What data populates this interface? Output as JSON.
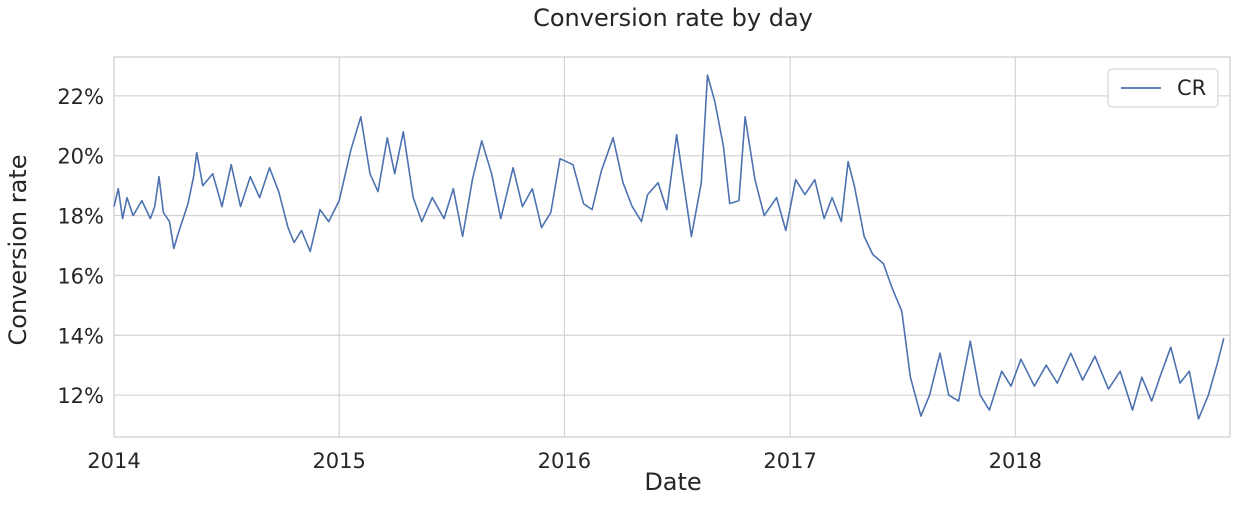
{
  "chart_data": {
    "type": "line",
    "title": "Conversion rate by day",
    "xlabel": "Date",
    "ylabel": "Conversion rate",
    "x_range": [
      "2014-01-01",
      "2018-12-15"
    ],
    "ylim": [
      10.6,
      23.3
    ],
    "x_ticks": [
      "2014",
      "2015",
      "2016",
      "2017",
      "2018"
    ],
    "y_ticks": [
      12,
      14,
      16,
      18,
      20,
      22
    ],
    "y_tick_format": "%",
    "grid": true,
    "legend_position": "top-right",
    "colors": {
      "line": "#4c72b0",
      "grid": "#cccccc",
      "frame": "#cccccc"
    },
    "series": [
      {
        "name": "CR",
        "points": [
          [
            "2014-01-01",
            18.3
          ],
          [
            "2014-01-08",
            18.9
          ],
          [
            "2014-01-15",
            17.9
          ],
          [
            "2014-01-22",
            18.6
          ],
          [
            "2014-02-01",
            18.0
          ],
          [
            "2014-02-15",
            18.5
          ],
          [
            "2014-03-01",
            17.9
          ],
          [
            "2014-03-08",
            18.3
          ],
          [
            "2014-03-15",
            19.3
          ],
          [
            "2014-03-22",
            18.1
          ],
          [
            "2014-04-01",
            17.8
          ],
          [
            "2014-04-08",
            16.9
          ],
          [
            "2014-04-15",
            17.4
          ],
          [
            "2014-05-01",
            18.4
          ],
          [
            "2014-05-10",
            19.3
          ],
          [
            "2014-05-15",
            20.1
          ],
          [
            "2014-05-25",
            19.0
          ],
          [
            "2014-06-10",
            19.4
          ],
          [
            "2014-06-25",
            18.3
          ],
          [
            "2014-07-10",
            19.7
          ],
          [
            "2014-07-25",
            18.3
          ],
          [
            "2014-08-10",
            19.3
          ],
          [
            "2014-08-25",
            18.6
          ],
          [
            "2014-09-10",
            19.6
          ],
          [
            "2014-09-25",
            18.8
          ],
          [
            "2014-10-10",
            17.6
          ],
          [
            "2014-10-20",
            17.1
          ],
          [
            "2014-11-01",
            17.5
          ],
          [
            "2014-11-15",
            16.8
          ],
          [
            "2014-12-01",
            18.2
          ],
          [
            "2014-12-15",
            17.8
          ],
          [
            "2015-01-01",
            18.5
          ],
          [
            "2015-01-20",
            20.2
          ],
          [
            "2015-02-05",
            21.3
          ],
          [
            "2015-02-20",
            19.4
          ],
          [
            "2015-03-05",
            18.8
          ],
          [
            "2015-03-20",
            20.6
          ],
          [
            "2015-04-01",
            19.4
          ],
          [
            "2015-04-15",
            20.8
          ],
          [
            "2015-05-01",
            18.6
          ],
          [
            "2015-05-15",
            17.8
          ],
          [
            "2015-06-01",
            18.6
          ],
          [
            "2015-06-20",
            17.9
          ],
          [
            "2015-07-05",
            18.9
          ],
          [
            "2015-07-20",
            17.3
          ],
          [
            "2015-08-05",
            19.2
          ],
          [
            "2015-08-20",
            20.5
          ],
          [
            "2015-09-05",
            19.4
          ],
          [
            "2015-09-20",
            17.9
          ],
          [
            "2015-10-10",
            19.6
          ],
          [
            "2015-10-25",
            18.3
          ],
          [
            "2015-11-10",
            18.9
          ],
          [
            "2015-11-25",
            17.6
          ],
          [
            "2015-12-10",
            18.1
          ],
          [
            "2015-12-25",
            19.9
          ],
          [
            "2016-01-15",
            19.7
          ],
          [
            "2016-02-01",
            18.4
          ],
          [
            "2016-02-15",
            18.2
          ],
          [
            "2016-03-01",
            19.5
          ],
          [
            "2016-03-20",
            20.6
          ],
          [
            "2016-04-05",
            19.1
          ],
          [
            "2016-04-20",
            18.3
          ],
          [
            "2016-05-05",
            17.8
          ],
          [
            "2016-05-15",
            18.7
          ],
          [
            "2016-06-01",
            19.1
          ],
          [
            "2016-06-15",
            18.2
          ],
          [
            "2016-07-01",
            20.7
          ],
          [
            "2016-07-15",
            18.7
          ],
          [
            "2016-07-25",
            17.3
          ],
          [
            "2016-08-10",
            19.1
          ],
          [
            "2016-08-20",
            22.7
          ],
          [
            "2016-09-01",
            21.8
          ],
          [
            "2016-09-15",
            20.3
          ],
          [
            "2016-09-25",
            18.4
          ],
          [
            "2016-10-10",
            18.5
          ],
          [
            "2016-10-20",
            21.3
          ],
          [
            "2016-11-05",
            19.2
          ],
          [
            "2016-11-20",
            18.0
          ],
          [
            "2016-12-10",
            18.6
          ],
          [
            "2016-12-25",
            17.5
          ],
          [
            "2017-01-10",
            19.2
          ],
          [
            "2017-01-25",
            18.7
          ],
          [
            "2017-02-10",
            19.2
          ],
          [
            "2017-02-25",
            17.9
          ],
          [
            "2017-03-10",
            18.6
          ],
          [
            "2017-03-25",
            17.8
          ],
          [
            "2017-04-05",
            19.8
          ],
          [
            "2017-04-15",
            19.0
          ],
          [
            "2017-05-01",
            17.3
          ],
          [
            "2017-05-15",
            16.7
          ],
          [
            "2017-06-01",
            16.4
          ],
          [
            "2017-06-15",
            15.6
          ],
          [
            "2017-07-01",
            14.8
          ],
          [
            "2017-07-15",
            12.6
          ],
          [
            "2017-08-01",
            11.3
          ],
          [
            "2017-08-15",
            12.0
          ],
          [
            "2017-09-01",
            13.4
          ],
          [
            "2017-09-15",
            12.0
          ],
          [
            "2017-10-01",
            11.8
          ],
          [
            "2017-10-20",
            13.8
          ],
          [
            "2017-11-05",
            12.0
          ],
          [
            "2017-11-20",
            11.5
          ],
          [
            "2017-12-10",
            12.8
          ],
          [
            "2017-12-25",
            12.3
          ],
          [
            "2018-01-10",
            13.2
          ],
          [
            "2018-02-01",
            12.3
          ],
          [
            "2018-02-20",
            13.0
          ],
          [
            "2018-03-10",
            12.4
          ],
          [
            "2018-04-01",
            13.4
          ],
          [
            "2018-04-20",
            12.5
          ],
          [
            "2018-05-10",
            13.3
          ],
          [
            "2018-06-01",
            12.2
          ],
          [
            "2018-06-20",
            12.8
          ],
          [
            "2018-07-10",
            11.5
          ],
          [
            "2018-07-25",
            12.6
          ],
          [
            "2018-08-10",
            11.8
          ],
          [
            "2018-08-25",
            12.7
          ],
          [
            "2018-09-10",
            13.6
          ],
          [
            "2018-09-25",
            12.4
          ],
          [
            "2018-10-10",
            12.8
          ],
          [
            "2018-10-25",
            11.2
          ],
          [
            "2018-11-10",
            12.0
          ],
          [
            "2018-11-25",
            13.1
          ],
          [
            "2018-12-05",
            13.9
          ]
        ]
      }
    ]
  }
}
